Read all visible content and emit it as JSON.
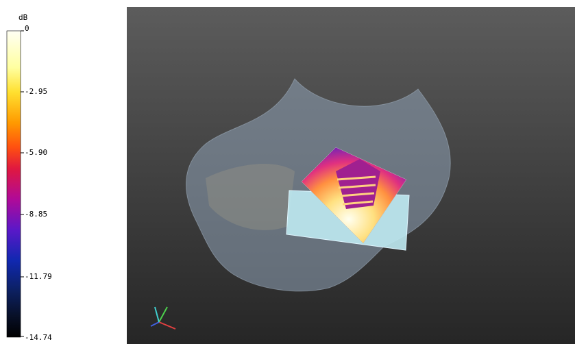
{
  "colorbar": {
    "unit": "dB",
    "ticks": [
      "0",
      "-2.95",
      "-5.90",
      "-8.85",
      "-11.79",
      "-14.74"
    ]
  }
}
